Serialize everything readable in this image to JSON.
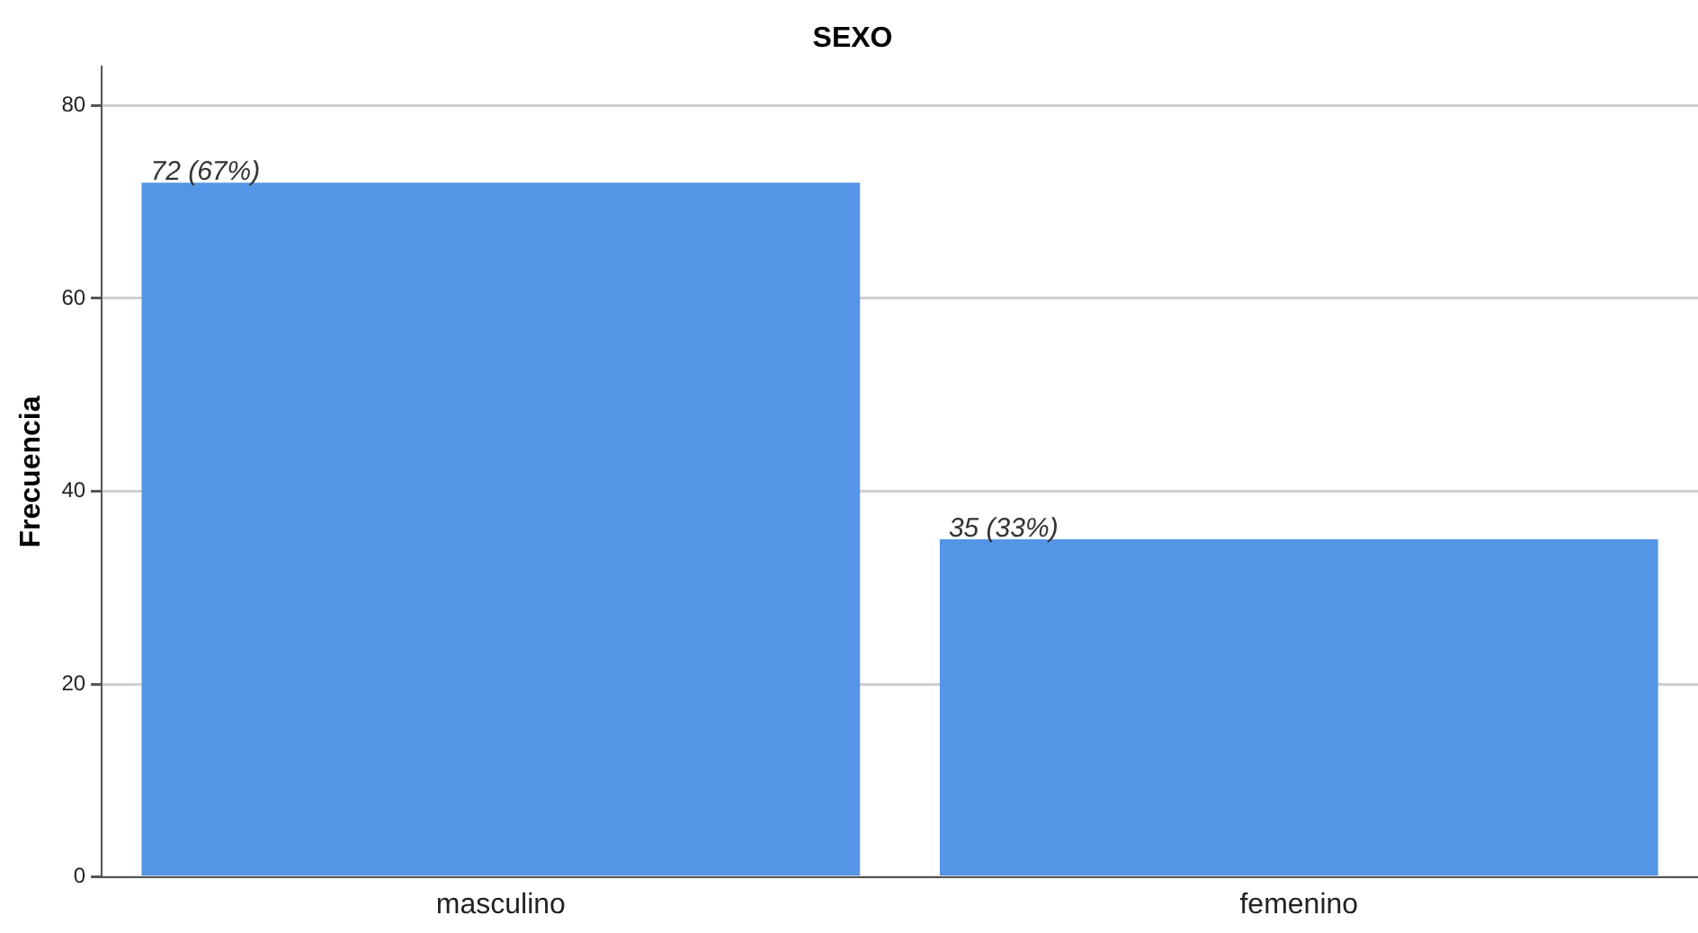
{
  "chart_data": {
    "type": "bar",
    "title": "SEXO",
    "ylabel": "Frecuencia",
    "categories": [
      "masculino",
      "femenino"
    ],
    "values": [
      72,
      35
    ],
    "value_labels": [
      "72 (67%)",
      "35 (33%)"
    ],
    "color": "#5595e5",
    "ylim": [
      0,
      84
    ],
    "yticks": [
      0,
      20,
      40,
      60,
      80
    ],
    "grid": "y",
    "legend": false
  }
}
